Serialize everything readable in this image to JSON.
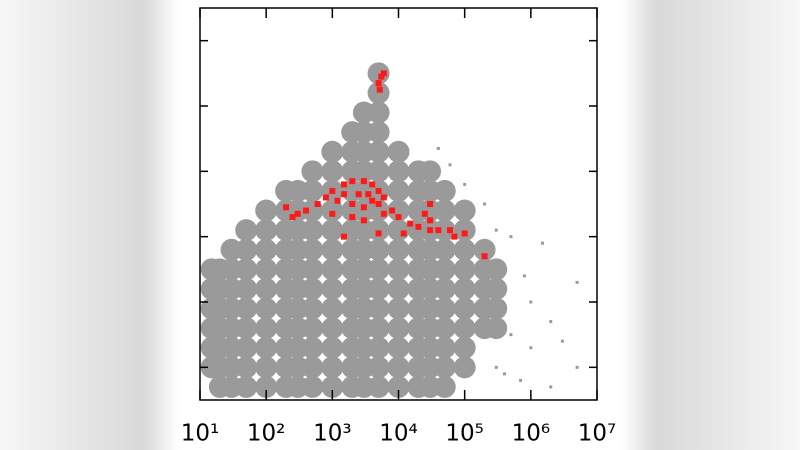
{
  "chart_data": {
    "type": "scatter",
    "xlim": [
      10,
      10000000
    ],
    "log_x": true,
    "xticks": [
      {
        "value": 10,
        "label": "10¹"
      },
      {
        "value": 100,
        "label": "10²"
      },
      {
        "value": 1000,
        "label": "10³"
      },
      {
        "value": 10000,
        "label": "10⁴"
      },
      {
        "value": 100000,
        "label": "10⁵"
      },
      {
        "value": 1000000,
        "label": "10⁶"
      },
      {
        "value": 10000000,
        "label": "10⁷"
      }
    ],
    "ylim": [
      0,
      6
    ],
    "yticks": [
      0.5,
      1.5,
      2.5,
      3.5,
      4.5,
      5.5
    ],
    "series": [
      {
        "color": "#9a9a9a",
        "marker": "circle",
        "marker_size": 11,
        "x": [
          15,
          15,
          15,
          15,
          15,
          15,
          20,
          20,
          20,
          20,
          20,
          20,
          20,
          30,
          30,
          30,
          30,
          30,
          30,
          30,
          30,
          50,
          50,
          50,
          50,
          50,
          50,
          50,
          50,
          50,
          100,
          100,
          100,
          100,
          100,
          100,
          100,
          100,
          100,
          100,
          200,
          200,
          200,
          200,
          200,
          200,
          200,
          200,
          200,
          200,
          200,
          300,
          300,
          300,
          300,
          300,
          300,
          300,
          300,
          300,
          300,
          300,
          500,
          500,
          500,
          500,
          500,
          500,
          500,
          500,
          500,
          500,
          500,
          500,
          1000,
          1000,
          1000,
          1000,
          1000,
          1000,
          1000,
          1000,
          1000,
          1000,
          1000,
          1000,
          1000,
          2000,
          2000,
          2000,
          2000,
          2000,
          2000,
          2000,
          2000,
          2000,
          2000,
          2000,
          2000,
          2000,
          2000,
          3000,
          3000,
          3000,
          3000,
          3000,
          3000,
          3000,
          3000,
          3000,
          3000,
          3000,
          3000,
          3000,
          3000,
          3000,
          5000,
          5000,
          5000,
          5000,
          5000,
          5000,
          5000,
          5000,
          5000,
          5000,
          5000,
          5000,
          5000,
          5000,
          5000,
          5000,
          5000,
          10000,
          10000,
          10000,
          10000,
          10000,
          10000,
          10000,
          10000,
          10000,
          10000,
          10000,
          10000,
          10000,
          20000,
          20000,
          20000,
          20000,
          20000,
          20000,
          20000,
          20000,
          20000,
          20000,
          20000,
          20000,
          30000,
          30000,
          30000,
          30000,
          30000,
          30000,
          30000,
          30000,
          30000,
          30000,
          30000,
          30000,
          50000,
          50000,
          50000,
          50000,
          50000,
          50000,
          50000,
          50000,
          50000,
          50000,
          50000,
          100000,
          100000,
          100000,
          100000,
          100000,
          100000,
          100000,
          100000,
          100000,
          200000,
          200000,
          200000,
          200000,
          200000,
          300000,
          300000,
          300000,
          300000
        ],
        "values": [
          0.5,
          0.8,
          1.1,
          1.4,
          1.7,
          2.0,
          0.2,
          0.5,
          0.8,
          1.1,
          1.4,
          1.7,
          2.0,
          0.2,
          0.5,
          0.8,
          1.1,
          1.4,
          1.7,
          2.0,
          2.3,
          0.2,
          0.5,
          0.8,
          1.1,
          1.4,
          1.7,
          2.0,
          2.3,
          2.6,
          0.2,
          0.5,
          0.8,
          1.1,
          1.4,
          1.7,
          2.0,
          2.3,
          2.6,
          2.9,
          0.2,
          0.5,
          0.8,
          1.1,
          1.4,
          1.7,
          2.0,
          2.3,
          2.6,
          2.9,
          3.2,
          0.2,
          0.5,
          0.8,
          1.1,
          1.4,
          1.7,
          2.0,
          2.3,
          2.6,
          2.9,
          3.2,
          0.2,
          0.5,
          0.8,
          1.1,
          1.4,
          1.7,
          2.0,
          2.3,
          2.6,
          2.9,
          3.2,
          3.5,
          0.2,
          0.5,
          0.8,
          1.1,
          1.4,
          1.7,
          2.0,
          2.3,
          2.6,
          2.9,
          3.2,
          3.5,
          3.8,
          0.2,
          0.5,
          0.8,
          1.1,
          1.4,
          1.7,
          2.0,
          2.3,
          2.6,
          2.9,
          3.2,
          3.5,
          3.8,
          4.1,
          0.2,
          0.5,
          0.8,
          1.1,
          1.4,
          1.7,
          2.0,
          2.3,
          2.6,
          2.9,
          3.2,
          3.5,
          3.8,
          4.1,
          4.4,
          0.2,
          0.5,
          0.8,
          1.1,
          1.4,
          1.7,
          2.0,
          2.3,
          2.6,
          2.9,
          3.2,
          3.5,
          3.8,
          4.1,
          4.4,
          4.7,
          5.0,
          0.2,
          0.5,
          0.8,
          1.1,
          1.4,
          1.7,
          2.0,
          2.3,
          2.6,
          2.9,
          3.2,
          3.5,
          3.8,
          0.2,
          0.5,
          0.8,
          1.1,
          1.4,
          1.7,
          2.0,
          2.3,
          2.6,
          2.9,
          3.2,
          3.5,
          0.2,
          0.5,
          0.8,
          1.1,
          1.4,
          1.7,
          2.0,
          2.3,
          2.6,
          2.9,
          3.2,
          3.5,
          0.2,
          0.5,
          0.8,
          1.1,
          1.4,
          1.7,
          2.0,
          2.3,
          2.6,
          2.9,
          3.2,
          0.5,
          0.8,
          1.1,
          1.4,
          1.7,
          2.0,
          2.3,
          2.6,
          2.9,
          1.1,
          1.4,
          1.7,
          2.0,
          2.3,
          1.1,
          1.4,
          1.7,
          2.0
        ]
      },
      {
        "color": "#9a9a9a",
        "marker": "square",
        "marker_size": 1.5,
        "x": [
          1000000,
          1000000,
          2000000,
          5000000,
          5000000,
          500000,
          500000,
          300000,
          100000,
          200000,
          700000,
          3000000,
          1500000,
          400000,
          800000,
          2000000,
          60000,
          40000,
          300000
        ],
        "values": [
          1.5,
          0.8,
          1.2,
          1.8,
          0.5,
          2.5,
          1.0,
          2.6,
          3.3,
          3.0,
          0.3,
          0.9,
          2.4,
          0.4,
          1.9,
          0.2,
          3.6,
          3.85,
          0.5
        ]
      },
      {
        "color": "#ff1a1a",
        "marker": "square",
        "marker_size": 3,
        "x": [
          1000,
          1500,
          2000,
          3000,
          4000,
          5000,
          1200,
          2000,
          3000,
          4000,
          5000,
          1500,
          2500,
          3500,
          800,
          6000,
          600,
          400,
          300,
          200,
          250,
          1000,
          2000,
          3000,
          6000,
          8000,
          10000,
          15000,
          20000,
          25000,
          30000,
          30000,
          30000,
          40000,
          60000,
          70000,
          100000,
          200000,
          12000,
          1500,
          5000,
          5000,
          5500,
          6000,
          5200
        ],
        "values": [
          3.2,
          3.3,
          3.35,
          3.35,
          3.3,
          3.2,
          3.05,
          3.0,
          2.95,
          3.05,
          3.0,
          3.15,
          3.15,
          3.15,
          3.1,
          3.1,
          3.0,
          2.9,
          2.85,
          2.95,
          2.8,
          2.85,
          2.8,
          2.75,
          2.85,
          2.9,
          2.8,
          2.7,
          2.65,
          2.85,
          2.75,
          3.0,
          2.6,
          2.6,
          2.6,
          2.5,
          2.55,
          2.2,
          2.55,
          2.5,
          2.55,
          4.85,
          4.95,
          5.0,
          4.75
        ]
      }
    ]
  }
}
